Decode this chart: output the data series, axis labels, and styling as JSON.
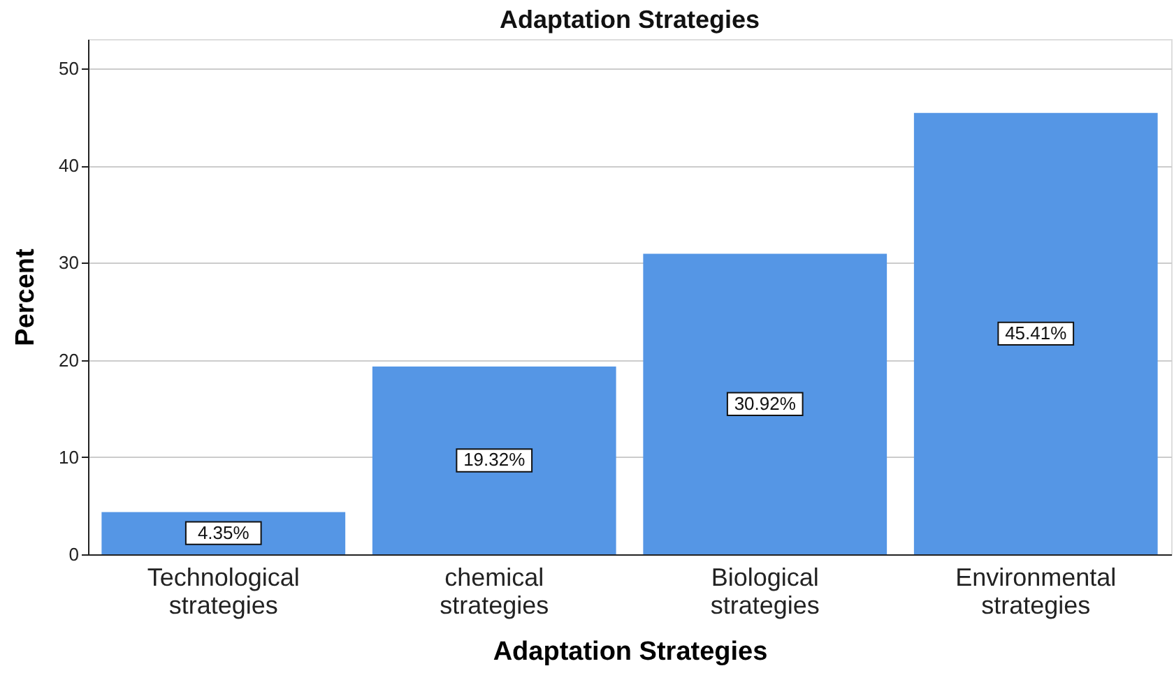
{
  "chart_data": {
    "type": "bar",
    "title": "Adaptation Strategies",
    "xlabel": "Adaptation Strategies",
    "ylabel": "Percent",
    "categories": [
      "Technological strategies",
      "chemical strategies",
      "Biological strategies",
      "Environmental strategies"
    ],
    "values": [
      4.35,
      19.32,
      30.92,
      45.41
    ],
    "value_labels": [
      "4.35%",
      "19.32%",
      "30.92%",
      "45.41%"
    ],
    "color": "#5596e5",
    "ylim": [
      0,
      53
    ],
    "yticks": [
      0,
      10,
      20,
      30,
      40,
      50
    ],
    "grid": "y"
  }
}
